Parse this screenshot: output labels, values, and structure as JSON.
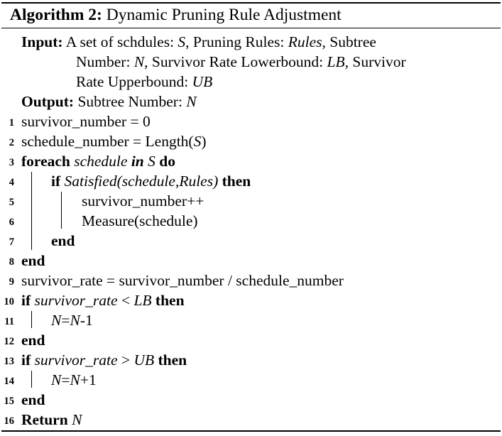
{
  "algorithm": {
    "label": "Algorithm 2:",
    "title": "Dynamic Pruning Rule Adjustment"
  },
  "input": {
    "keyword": "Input:",
    "line1_pre": "A set of schdules: ",
    "line1_s": "S",
    "line1_mid": ", Pruning Rules: ",
    "line1_rules": "Rules",
    "line1_post": ", Subtree",
    "line2_pre": "Number: ",
    "line2_n": "N",
    "line2_mid": ", Survivor Rate Lowerbound: ",
    "line2_lb": "LB",
    "line2_post": ", Survivor",
    "line3_pre": "Rate Upperbound: ",
    "line3_ub": "UB"
  },
  "output": {
    "keyword": "Output:",
    "text": "Subtree Number: ",
    "n": "N"
  },
  "lines": {
    "l1": {
      "num": "1",
      "text": "survivor_number = 0"
    },
    "l2": {
      "num": "2",
      "pre": "schedule_number = Length(",
      "s": "S",
      "post": ")"
    },
    "l3": {
      "num": "3",
      "kw1": "foreach",
      "var": "schedule",
      "kw2": "in",
      "s": "S",
      "kw3": "do"
    },
    "l4": {
      "num": "4",
      "kw1": "if",
      "cond": "Satisfied(schedule,Rules)",
      "kw2": "then"
    },
    "l5": {
      "num": "5",
      "text": "survivor_number++"
    },
    "l6": {
      "num": "6",
      "text": "Measure(schedule)"
    },
    "l7": {
      "num": "7",
      "kw": "end"
    },
    "l8": {
      "num": "8",
      "kw": "end"
    },
    "l9": {
      "num": "9",
      "text": "survivor_rate = survivor_number / schedule_number"
    },
    "l10": {
      "num": "10",
      "kw1": "if",
      "var": "survivor_rate",
      "op": " < ",
      "bound": "LB",
      "kw2": "then"
    },
    "l11": {
      "num": "11",
      "a": "N",
      "eq": "=",
      "b": "N",
      "rest": "-1"
    },
    "l12": {
      "num": "12",
      "kw": "end"
    },
    "l13": {
      "num": "13",
      "kw1": "if",
      "var": "survivor_rate",
      "op": " > ",
      "bound": "UB",
      "kw2": "then"
    },
    "l14": {
      "num": "14",
      "a": "N",
      "eq": "=",
      "b": "N",
      "rest": "+1"
    },
    "l15": {
      "num": "15",
      "kw": "end"
    },
    "l16": {
      "num": "16",
      "kw": "Return",
      "n": "N"
    }
  }
}
